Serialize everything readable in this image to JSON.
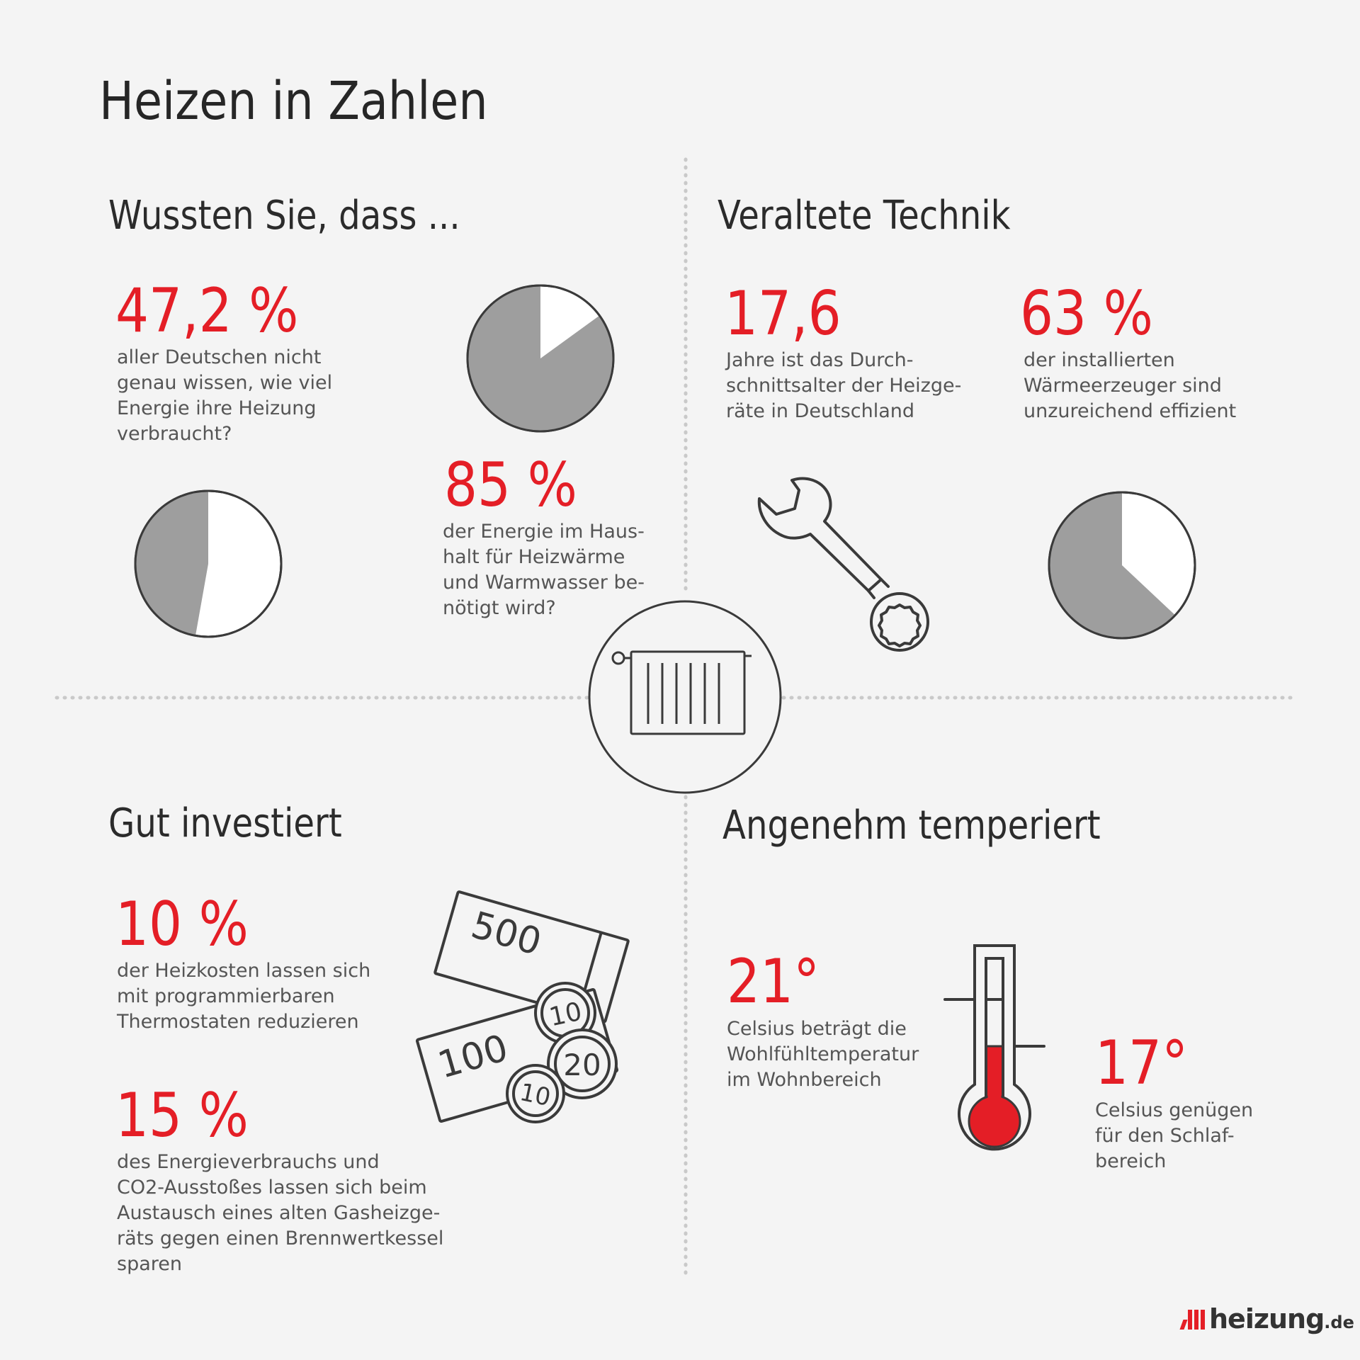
{
  "title": "Heizen in Zahlen",
  "colors": {
    "accent": "#e41e26",
    "pie_fill": "#9e9e9e",
    "line": "#3a3a3a",
    "background": "#f4f4f4"
  },
  "sections": {
    "wussten": {
      "heading": "Wussten Sie, dass ...",
      "stat1": {
        "value": "47,2 %",
        "lines": [
          "aller Deutschen nicht",
          "genau wissen, wie viel",
          "Energie ihre Heizung",
          "verbraucht?"
        ],
        "pie_fraction": 0.472
      },
      "stat2": {
        "value": "85 %",
        "lines": [
          "der Energie im Haus-",
          "halt für Heizwärme",
          "und Warmwasser be-",
          "nötigt wird?"
        ],
        "pie_fraction": 0.85
      }
    },
    "veraltet": {
      "heading": "Veraltete Technik",
      "stat1": {
        "value": "17,6",
        "lines": [
          "Jahre ist das Durch-",
          "schnittsalter der Heizge-",
          "räte in Deutschland"
        ]
      },
      "stat2": {
        "value": "63 %",
        "lines": [
          "der installierten",
          "Wärmeerzeuger sind",
          "unzureichend effizient"
        ],
        "pie_fraction": 0.63
      }
    },
    "investiert": {
      "heading": "Gut investiert",
      "stat1": {
        "value": "10 %",
        "lines": [
          "der Heizkosten lassen sich",
          "mit programmierbaren",
          "Thermostaten reduzieren"
        ]
      },
      "stat2": {
        "value": "15 %",
        "lines": [
          "des Energieverbrauchs und",
          "CO2-Ausstoßes lassen sich beim",
          "Austausch eines alten Gasheizge-",
          "räts gegen einen Brennwertkessel",
          "sparen"
        ]
      },
      "money": {
        "note_500": "500",
        "note_100": "100",
        "coin_a": "10",
        "coin_b": "20",
        "coin_c": "10"
      }
    },
    "temperiert": {
      "heading": "Angenehm temperiert",
      "stat1": {
        "value": "21°",
        "lines": [
          "Celsius beträgt die",
          "Wohlfühltemperatur",
          "im Wohnbereich"
        ]
      },
      "stat2": {
        "value": "17°",
        "lines": [
          "Celsius genügen",
          "für den Schlaf-",
          "bereich"
        ]
      }
    }
  },
  "icons": [
    "radiator-icon",
    "wrench-icon",
    "money-icon",
    "thermometer-icon"
  ],
  "logo": {
    "name": "heizung",
    "tld": ".de"
  }
}
